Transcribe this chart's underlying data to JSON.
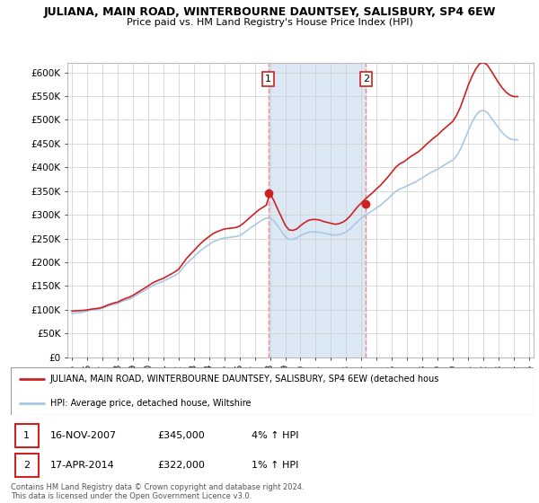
{
  "title": "JULIANA, MAIN ROAD, WINTERBOURNE DAUNTSEY, SALISBURY, SP4 6EW",
  "subtitle": "Price paid vs. HM Land Registry's House Price Index (HPI)",
  "ylim": [
    0,
    620000
  ],
  "yticks": [
    0,
    50000,
    100000,
    150000,
    200000,
    250000,
    300000,
    350000,
    400000,
    450000,
    500000,
    550000,
    600000
  ],
  "ytick_labels": [
    "£0",
    "£50K",
    "£100K",
    "£150K",
    "£200K",
    "£250K",
    "£300K",
    "£350K",
    "£400K",
    "£450K",
    "£500K",
    "£550K",
    "£600K"
  ],
  "hpi_color": "#a8c8e8",
  "price_color": "#cc2222",
  "bg_color": "#ffffff",
  "grid_color": "#cccccc",
  "sale1_date": 2007.88,
  "sale1_price": 345000,
  "sale1_label": "1",
  "sale2_date": 2014.29,
  "sale2_price": 322000,
  "sale2_label": "2",
  "shade_color": "#dde8f5",
  "vline_color": "#ee8888",
  "legend_line1": "JULIANA, MAIN ROAD, WINTERBOURNE DAUNTSEY, SALISBURY, SP4 6EW (detached hous",
  "legend_line2": "HPI: Average price, detached house, Wiltshire",
  "table_row1": [
    "1",
    "16-NOV-2007",
    "£345,000",
    "4% ↑ HPI"
  ],
  "table_row2": [
    "2",
    "17-APR-2014",
    "£322,000",
    "1% ↑ HPI"
  ],
  "footer": "Contains HM Land Registry data © Crown copyright and database right 2024.\nThis data is licensed under the Open Government Licence v3.0.",
  "hpi_x": [
    1995,
    1995.25,
    1995.5,
    1995.75,
    1996,
    1996.25,
    1996.5,
    1996.75,
    1997,
    1997.25,
    1997.5,
    1997.75,
    1998,
    1998.25,
    1998.5,
    1998.75,
    1999,
    1999.25,
    1999.5,
    1999.75,
    2000,
    2000.25,
    2000.5,
    2000.75,
    2001,
    2001.25,
    2001.5,
    2001.75,
    2002,
    2002.25,
    2002.5,
    2002.75,
    2003,
    2003.25,
    2003.5,
    2003.75,
    2004,
    2004.25,
    2004.5,
    2004.75,
    2005,
    2005.25,
    2005.5,
    2005.75,
    2006,
    2006.25,
    2006.5,
    2006.75,
    2007,
    2007.25,
    2007.5,
    2007.75,
    2008,
    2008.25,
    2008.5,
    2008.75,
    2009,
    2009.25,
    2009.5,
    2009.75,
    2010,
    2010.25,
    2010.5,
    2010.75,
    2011,
    2011.25,
    2011.5,
    2011.75,
    2012,
    2012.25,
    2012.5,
    2012.75,
    2013,
    2013.25,
    2013.5,
    2013.75,
    2014,
    2014.25,
    2014.5,
    2014.75,
    2015,
    2015.25,
    2015.5,
    2015.75,
    2016,
    2016.25,
    2016.5,
    2016.75,
    2017,
    2017.25,
    2017.5,
    2017.75,
    2018,
    2018.25,
    2018.5,
    2018.75,
    2019,
    2019.25,
    2019.5,
    2019.75,
    2020,
    2020.25,
    2020.5,
    2020.75,
    2021,
    2021.25,
    2021.5,
    2021.75,
    2022,
    2022.25,
    2022.5,
    2022.75,
    2023,
    2023.25,
    2023.5,
    2023.75,
    2024,
    2024.25
  ],
  "hpi_y": [
    92000,
    93000,
    94000,
    95000,
    97000,
    99000,
    100000,
    101000,
    103000,
    106000,
    109000,
    111000,
    113000,
    117000,
    120000,
    122000,
    126000,
    131000,
    136000,
    140000,
    145000,
    150000,
    154000,
    157000,
    160000,
    164000,
    168000,
    172000,
    177000,
    187000,
    196000,
    204000,
    211000,
    219000,
    226000,
    232000,
    237000,
    243000,
    246000,
    249000,
    251000,
    252000,
    253000,
    254000,
    256000,
    261000,
    267000,
    273000,
    278000,
    284000,
    289000,
    293000,
    293000,
    287000,
    277000,
    265000,
    254000,
    248000,
    248000,
    251000,
    256000,
    260000,
    263000,
    264000,
    264000,
    263000,
    261000,
    260000,
    258000,
    257000,
    258000,
    260000,
    264000,
    270000,
    278000,
    286000,
    293000,
    299000,
    304000,
    309000,
    315000,
    320000,
    327000,
    334000,
    342000,
    349000,
    354000,
    357000,
    361000,
    365000,
    368000,
    373000,
    378000,
    383000,
    388000,
    392000,
    396000,
    401000,
    406000,
    411000,
    415000,
    424000,
    438000,
    457000,
    476000,
    494000,
    509000,
    518000,
    520000,
    516000,
    505000,
    494000,
    483000,
    473000,
    465000,
    460000,
    458000,
    458000
  ],
  "price_x": [
    1995.0,
    1995.25,
    1995.5,
    1995.75,
    1996.0,
    1996.25,
    1996.5,
    1996.75,
    1997.0,
    1997.25,
    1997.5,
    1997.75,
    1998.0,
    1998.25,
    1998.5,
    1998.75,
    1999.0,
    1999.25,
    1999.5,
    1999.75,
    2000.0,
    2000.25,
    2000.5,
    2000.75,
    2001.0,
    2001.25,
    2001.5,
    2001.75,
    2002.0,
    2002.25,
    2002.5,
    2002.75,
    2003.0,
    2003.25,
    2003.5,
    2003.75,
    2004.0,
    2004.25,
    2004.5,
    2004.75,
    2005.0,
    2005.25,
    2005.5,
    2005.75,
    2006.0,
    2006.25,
    2006.5,
    2006.75,
    2007.0,
    2007.25,
    2007.5,
    2007.75,
    2008.0,
    2008.25,
    2008.5,
    2008.75,
    2009.0,
    2009.25,
    2009.5,
    2009.75,
    2010.0,
    2010.25,
    2010.5,
    2010.75,
    2011.0,
    2011.25,
    2011.5,
    2011.75,
    2012.0,
    2012.25,
    2012.5,
    2012.75,
    2013.0,
    2013.25,
    2013.5,
    2013.75,
    2014.0,
    2014.25,
    2014.5,
    2014.75,
    2015.0,
    2015.25,
    2015.5,
    2015.75,
    2016.0,
    2016.25,
    2016.5,
    2016.75,
    2017.0,
    2017.25,
    2017.5,
    2017.75,
    2018.0,
    2018.25,
    2018.5,
    2018.75,
    2019.0,
    2019.25,
    2019.5,
    2019.75,
    2020.0,
    2020.25,
    2020.5,
    2020.75,
    2021.0,
    2021.25,
    2021.5,
    2021.75,
    2022.0,
    2022.25,
    2022.5,
    2022.75,
    2023.0,
    2023.25,
    2023.5,
    2023.75,
    2024.0,
    2024.25
  ],
  "price_y": [
    97000,
    97500,
    98000,
    98500,
    99500,
    101000,
    102000,
    103000,
    105000,
    108500,
    111500,
    114000,
    116000,
    120000,
    123500,
    126000,
    130000,
    135000,
    140000,
    145000,
    150000,
    155500,
    159500,
    163000,
    166000,
    170500,
    175000,
    179500,
    185000,
    196000,
    207000,
    216000,
    224000,
    233000,
    241000,
    248000,
    254000,
    260000,
    264000,
    267000,
    270000,
    271000,
    272000,
    273000,
    276000,
    282000,
    289000,
    296000,
    303000,
    310000,
    315000,
    320000,
    345000,
    330000,
    312000,
    295000,
    278000,
    268000,
    267000,
    270000,
    277000,
    283000,
    288000,
    290000,
    290000,
    289000,
    286000,
    284000,
    282000,
    280000,
    281000,
    284000,
    289000,
    297000,
    307000,
    317000,
    325000,
    333000,
    340000,
    347000,
    355000,
    362000,
    371000,
    380000,
    390000,
    400000,
    407000,
    411000,
    417000,
    423000,
    428000,
    433000,
    440000,
    448000,
    455000,
    462000,
    468000,
    476000,
    483000,
    490000,
    497000,
    510000,
    527000,
    549000,
    572000,
    591000,
    607000,
    618000,
    621000,
    616000,
    604000,
    591000,
    578000,
    567000,
    558000,
    552000,
    549000,
    549000
  ]
}
